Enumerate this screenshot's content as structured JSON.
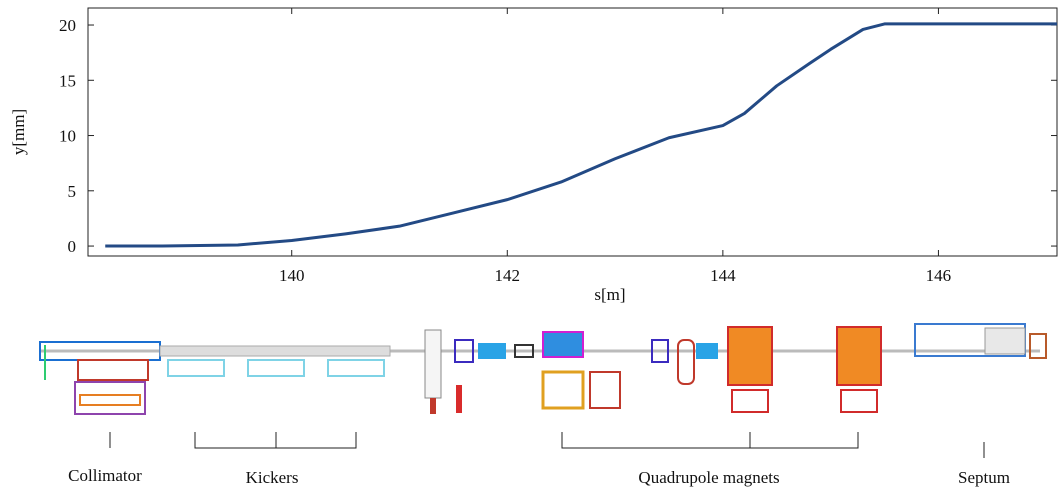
{
  "chart_data": {
    "type": "line",
    "x_label": "s[m]",
    "y_label": "y[mm]",
    "x": [
      138.27,
      138.8,
      139.5,
      140,
      140.5,
      141,
      141.5,
      142,
      142.5,
      143,
      143.5,
      144,
      144.2,
      144.5,
      144.8,
      145,
      145.3,
      145.5,
      146,
      147.1
    ],
    "series": [
      {
        "color": "#234a85",
        "values": [
          0,
          0,
          0.1,
          0.5,
          1.1,
          1.8,
          3.0,
          4.2,
          5.8,
          7.9,
          9.8,
          10.9,
          12,
          14.5,
          16.5,
          17.8,
          19.6,
          20.1,
          20.1,
          20.1
        ]
      }
    ],
    "xlim": [
      138.11,
      147.1
    ],
    "ylim": [
      -0.9,
      21.54
    ],
    "xticks": [
      140,
      142,
      144,
      146
    ],
    "yticks": [
      0,
      5,
      10,
      15,
      20
    ]
  },
  "diagram": {
    "labels": [
      "Collimator",
      "Kickers",
      "Quadrupole magnets",
      "Septum"
    ]
  }
}
